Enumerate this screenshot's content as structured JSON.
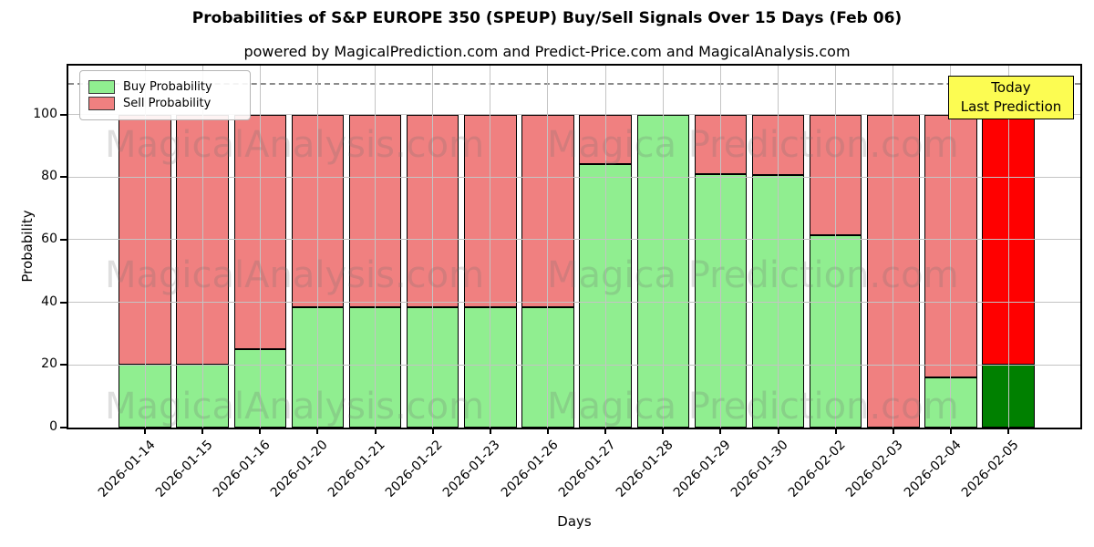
{
  "title": "Probabilities of S&P EUROPE 350 (SPEUP) Buy/Sell Signals Over 15 Days (Feb 06)",
  "subtitle": "powered by MagicalPrediction.com and Predict-Price.com and MagicalAnalysis.com",
  "legend": {
    "items": [
      {
        "label": "Buy Probability",
        "color": "#90EE90"
      },
      {
        "label": "Sell Probability",
        "color": "#F08080"
      }
    ]
  },
  "annotation_box": {
    "line1": "Today",
    "line2": "Last Prediction",
    "bg": "#FCFC52"
  },
  "axes": {
    "ylabel": "Probability",
    "xlabel": "Days",
    "yticks": [
      0,
      20,
      40,
      60,
      80,
      100
    ]
  },
  "watermarks": {
    "left_text": "MagicalAnalysis.com",
    "right_text": "Magica Prediction.com"
  },
  "chart_data": {
    "type": "bar",
    "stacked": true,
    "title": "Probabilities of S&P EUROPE 350 (SPEUP) Buy/Sell Signals Over 15 Days (Feb 06)",
    "xlabel": "Days",
    "ylabel": "Probability",
    "ylim": [
      0,
      115.6
    ],
    "yticks": [
      0,
      20,
      40,
      60,
      80,
      100
    ],
    "grid": true,
    "legend_position": "upper left",
    "dashed_hline": 110,
    "categories": [
      "2026-01-14",
      "2026-01-15",
      "2026-01-16",
      "2026-01-20",
      "2026-01-21",
      "2026-01-22",
      "2026-01-23",
      "2026-01-26",
      "2026-01-27",
      "2026-01-28",
      "2026-01-29",
      "2026-01-30",
      "2026-02-02",
      "2026-02-03",
      "2026-02-04",
      "2026-02-05"
    ],
    "series": [
      {
        "name": "Buy Probability",
        "color": "#90EE90",
        "values": [
          20,
          20,
          25,
          38.5,
          38.5,
          38.5,
          38.5,
          38.5,
          84,
          100,
          81,
          80.5,
          61.5,
          0,
          16,
          20
        ]
      },
      {
        "name": "Sell Probability",
        "color": "#F08080",
        "values": [
          80,
          80,
          75,
          61.5,
          61.5,
          61.5,
          61.5,
          61.5,
          16,
          0,
          19,
          19.5,
          38.5,
          100,
          84,
          80
        ]
      }
    ],
    "today_index": 15,
    "today_colors": {
      "buy": "#008000",
      "sell": "#FF0000"
    },
    "bar_edge_color": "#000000"
  }
}
